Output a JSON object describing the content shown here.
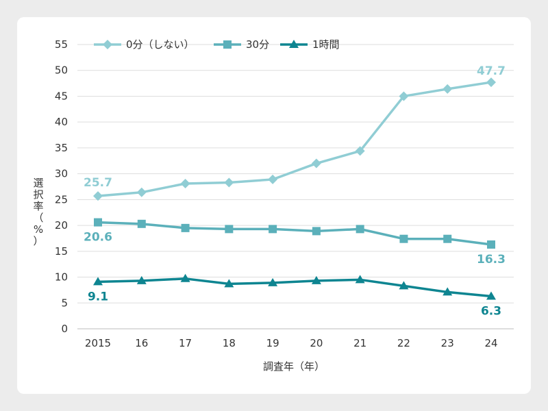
{
  "chart_data": {
    "type": "line",
    "title": "",
    "xlabel": "調査年（年）",
    "ylabel": [
      "選",
      "択",
      "率",
      "（",
      "%",
      "）"
    ],
    "categories": [
      "2015",
      "16",
      "17",
      "18",
      "19",
      "20",
      "21",
      "22",
      "23",
      "24"
    ],
    "ylim": [
      0,
      55
    ],
    "yticks": [
      0,
      5,
      10,
      15,
      20,
      25,
      30,
      35,
      40,
      45,
      50,
      55
    ],
    "grid": true,
    "legend_position": "top",
    "series": [
      {
        "name": "0分（しない）",
        "marker": "diamond",
        "color": "#90cdd4",
        "values": [
          25.7,
          26.4,
          28.1,
          28.3,
          28.9,
          32.0,
          34.4,
          45.0,
          46.4,
          47.7
        ],
        "labels": [
          {
            "index": 0,
            "text": "25.7"
          },
          {
            "index": 9,
            "text": "47.7"
          }
        ]
      },
      {
        "name": "30分",
        "marker": "square",
        "color": "#5bb0ba",
        "values": [
          20.6,
          20.3,
          19.5,
          19.3,
          19.3,
          18.9,
          19.3,
          17.4,
          17.4,
          16.3
        ],
        "labels": [
          {
            "index": 0,
            "text": "20.6"
          },
          {
            "index": 9,
            "text": "16.3"
          }
        ]
      },
      {
        "name": "1時間",
        "marker": "triangle",
        "color": "#0e8591",
        "values": [
          9.1,
          9.3,
          9.7,
          8.7,
          8.9,
          9.3,
          9.5,
          8.3,
          7.1,
          6.3
        ],
        "labels": [
          {
            "index": 0,
            "text": "9.1"
          },
          {
            "index": 9,
            "text": "6.3"
          }
        ]
      }
    ]
  }
}
